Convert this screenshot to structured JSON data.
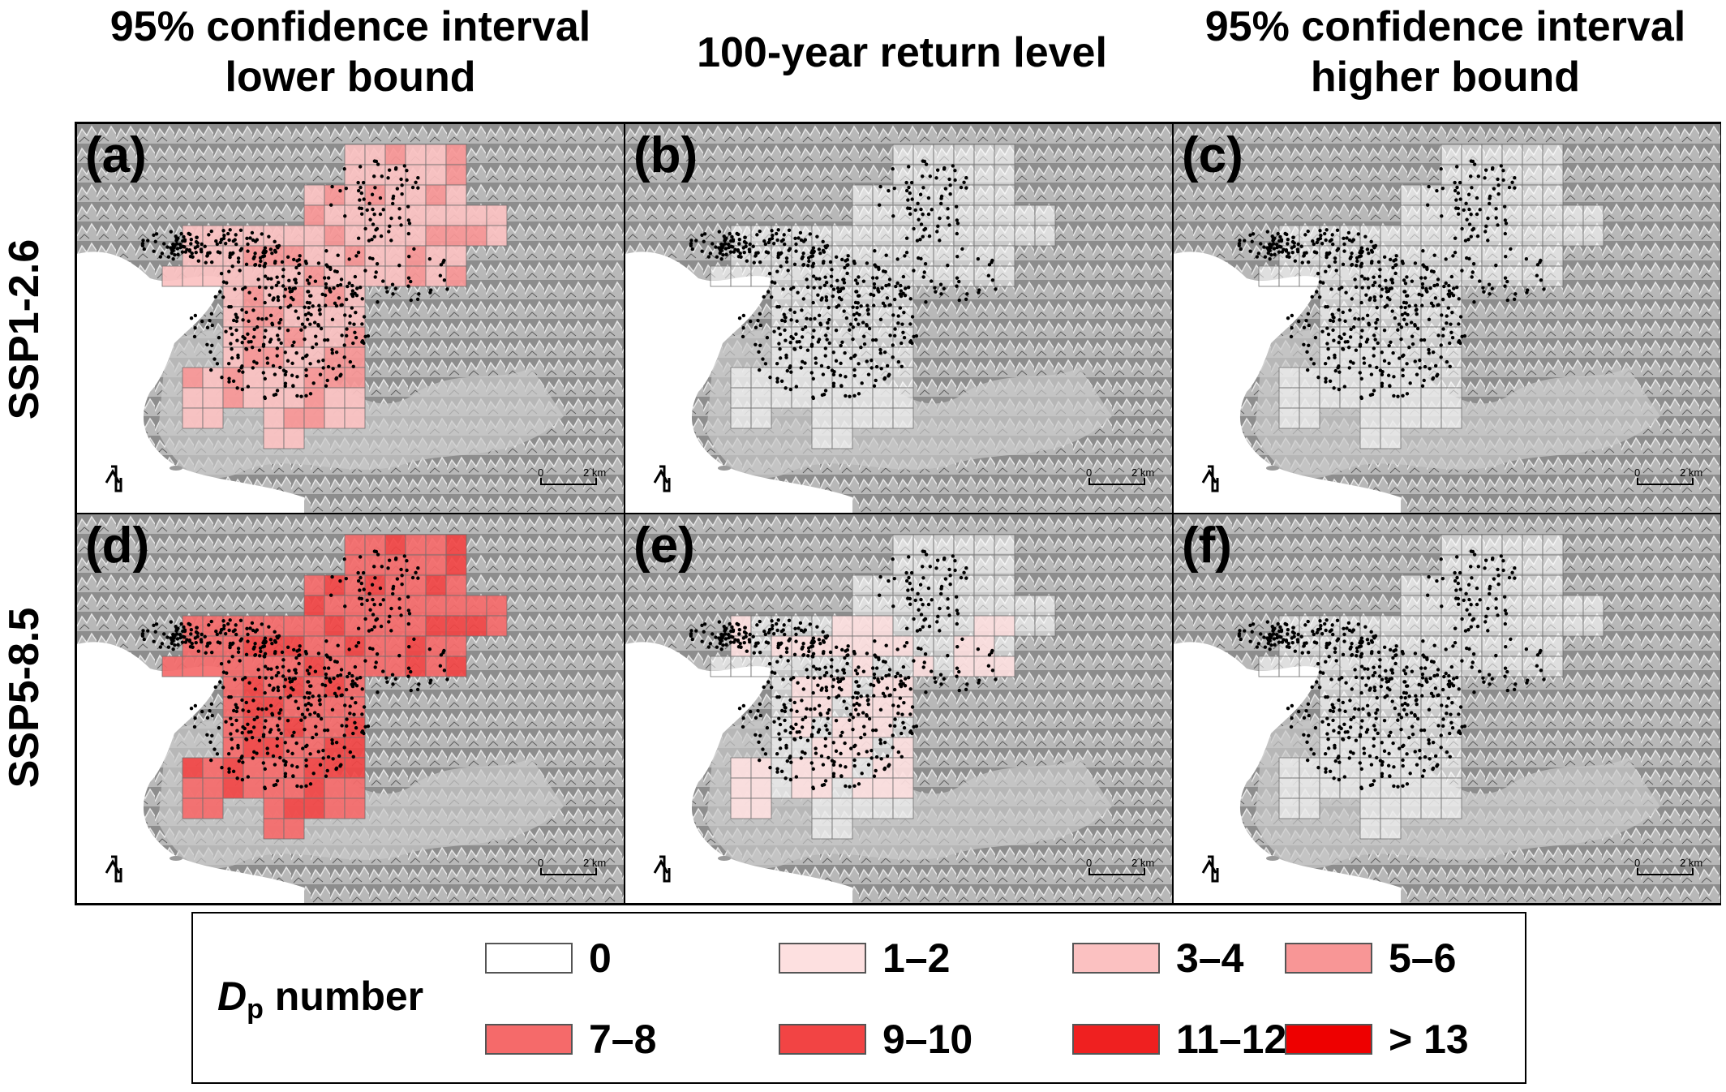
{
  "columns": [
    {
      "title": "95% confidence interval\nlower bound"
    },
    {
      "title": "100-year return level"
    },
    {
      "title": "95% confidence interval\nhigher bound"
    }
  ],
  "rows": [
    {
      "title": "SSP1-2.6"
    },
    {
      "title": "SSP5-8.5"
    }
  ],
  "panels": [
    {
      "label": "(a)",
      "scenario": "SSP1-2.6",
      "estimate": "lower",
      "fill_level": 2
    },
    {
      "label": "(b)",
      "scenario": "SSP1-2.6",
      "estimate": "return_level",
      "fill_level": 0
    },
    {
      "label": "(c)",
      "scenario": "SSP1-2.6",
      "estimate": "higher",
      "fill_level": 0
    },
    {
      "label": "(d)",
      "scenario": "SSP5-8.5",
      "estimate": "lower",
      "fill_level": 4
    },
    {
      "label": "(e)",
      "scenario": "SSP5-8.5",
      "estimate": "return_level",
      "fill_level": 1
    },
    {
      "label": "(f)",
      "scenario": "SSP5-8.5",
      "estimate": "higher",
      "fill_level": 0
    }
  ],
  "scale_bar": {
    "zero": "0",
    "end": "2 km"
  },
  "legend": {
    "title_main": "D",
    "title_sub": "p",
    "title_rest": " number",
    "classes": [
      {
        "label": "0",
        "color": "#ffffff"
      },
      {
        "label": "1–2",
        "color": "#fde0e0"
      },
      {
        "label": "3–4",
        "color": "#fbc1c1"
      },
      {
        "label": "5–6",
        "color": "#f89696"
      },
      {
        "label": "7–8",
        "color": "#f56a6a"
      },
      {
        "label": "9–10",
        "color": "#f24444"
      },
      {
        "label": "11–12",
        "color": "#ef2020"
      },
      {
        "label": "> 13",
        "color": "#ee0000"
      }
    ]
  }
}
